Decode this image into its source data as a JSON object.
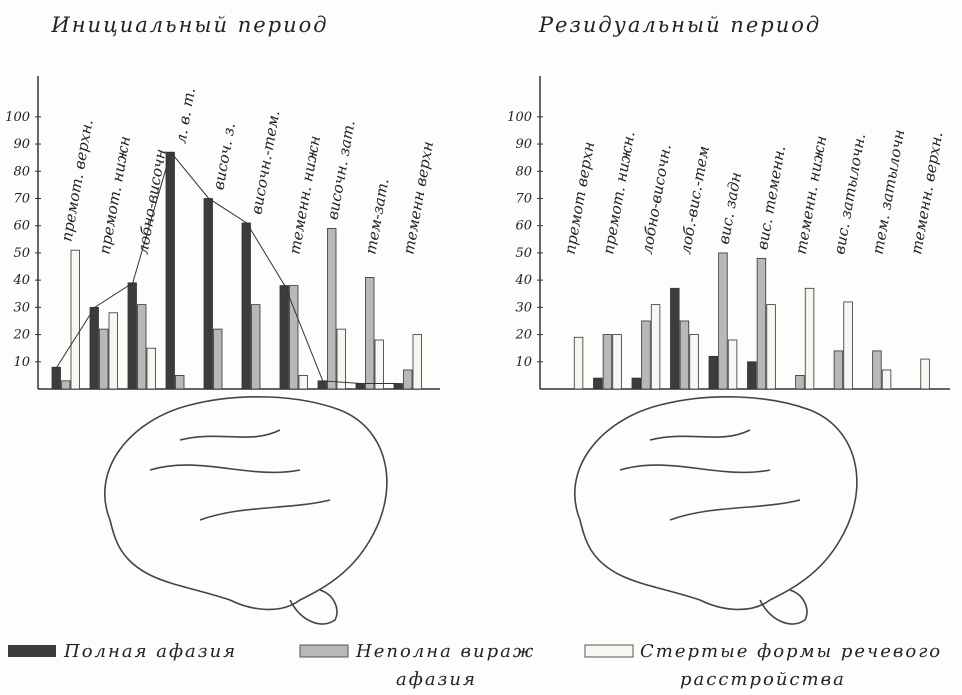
{
  "chart_data": [
    {
      "type": "bar",
      "title": "Инициальный период",
      "categories": [
        "премот. верхн.",
        "премот. нижн",
        "лобно-височн",
        "л. в. т.",
        "височ. з.",
        "височн.-тем.",
        "теменн. нижн",
        "височн. зат.",
        "тем-зат.",
        "теменн верхн"
      ],
      "series": [
        {
          "name": "Полная афазия",
          "color": "#3c3c3c",
          "values": [
            8,
            30,
            39,
            87,
            70,
            61,
            38,
            3,
            2,
            2
          ]
        },
        {
          "name": "Неполна вираж афазия",
          "color": "#b8b8b8",
          "values": [
            3,
            22,
            31,
            5,
            22,
            31,
            38,
            59,
            41,
            7
          ]
        },
        {
          "name": "Стертые формы речевого расстройства",
          "color": "#f6f6f2",
          "values": [
            51,
            28,
            15,
            0,
            0,
            0,
            5,
            22,
            18,
            20
          ]
        }
      ],
      "ylim": [
        0,
        115
      ],
      "yticks": [
        10,
        20,
        30,
        40,
        50,
        60,
        70,
        80,
        90,
        100
      ]
    },
    {
      "type": "bar",
      "title": "Резидуальный период",
      "categories": [
        "премот верхн",
        "премот. нижн.",
        "лобно-височн.",
        "лоб.-вис.-тем",
        "вис. задн",
        "вис. теменн.",
        "теменн. нижн",
        "вис. затылочн.",
        "тем. затылочн",
        "теменн. верхн."
      ],
      "series": [
        {
          "color": "#3c3c3c",
          "values": [
            0,
            4,
            4,
            37,
            12,
            10,
            0,
            0,
            0,
            0
          ]
        },
        {
          "color": "#b8b8b8",
          "values": [
            0,
            20,
            25,
            25,
            50,
            48,
            5,
            14,
            14,
            0
          ]
        },
        {
          "color": "#f6f6f2",
          "values": [
            19,
            20,
            31,
            20,
            18,
            31,
            37,
            32,
            7,
            11
          ]
        }
      ],
      "ylim": [
        0,
        115
      ],
      "yticks": [
        10,
        20,
        30,
        40,
        50,
        60,
        70,
        80,
        90,
        100
      ]
    }
  ]
}
